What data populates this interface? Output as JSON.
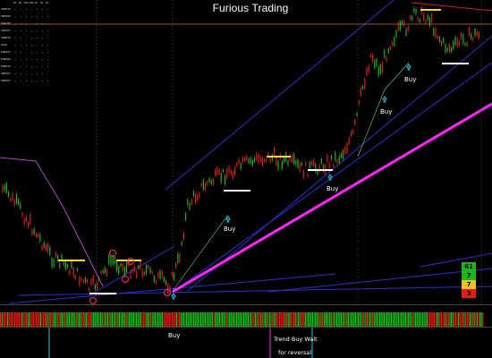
{
  "title": "Furious Trading",
  "colors": {
    "background": "#000000",
    "bull_candle": "#1fb51f",
    "bear_candle": "#e01b1b",
    "trend_line": "#ff22ff",
    "channel_line": "#2a2fd0",
    "resistance_line": "#c8733a",
    "buy_signal_line": "#6ad36a"
  },
  "dashboard": {
    "header": [
      "M1",
      "M5",
      "M15",
      "M30",
      "H1",
      "H4",
      "D1"
    ],
    "pairs": [
      "GBPUSD",
      "GBPAUD",
      "USDCHF",
      "USDJPY",
      "AUDUSD",
      "GOLD",
      "EURJPY",
      "EURAUD",
      "EURUSD",
      "GBPJPY",
      "EURJPY"
    ]
  },
  "buy_labels": [
    {
      "text": "Buy"
    },
    {
      "text": "Buy"
    },
    {
      "text": "Buy"
    },
    {
      "text": "Buy"
    }
  ],
  "lower_panel": {
    "buy_text": "Buy",
    "trend_text": "Trend Buy  Wait",
    "reversal_text": "for reversal"
  },
  "signal_boxes": [
    {
      "value": "61",
      "color": "#1db51d"
    },
    {
      "value": "7",
      "color": "#1db51d"
    },
    {
      "value": "7",
      "color": "#f0c020"
    },
    {
      "value": "3",
      "color": "#e01b1b"
    }
  ]
}
